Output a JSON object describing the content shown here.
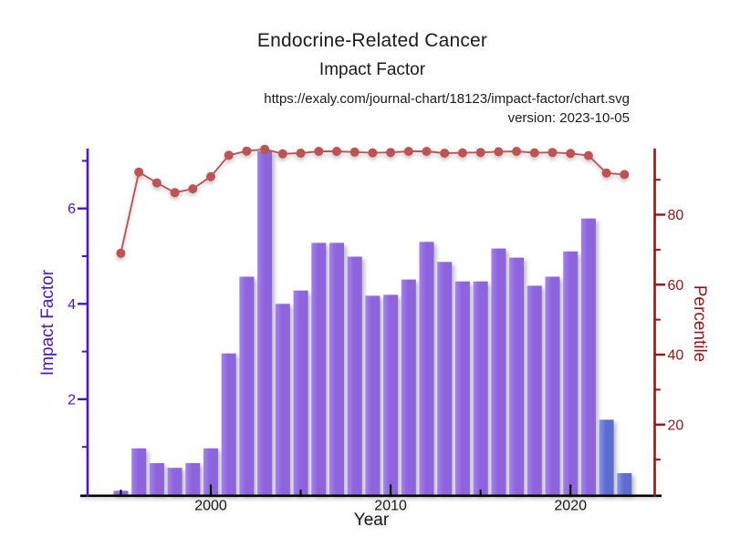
{
  "header": {
    "title": "Endocrine-Related Cancer",
    "subtitle": "Impact Factor",
    "url": "https://exaly.com/journal-chart/18123/impact-factor/chart.svg",
    "version": "version: 2023-10-05"
  },
  "chart_data": {
    "type": "bar",
    "title": "Endocrine-Related Cancer",
    "subtitle": "Impact Factor",
    "xlabel": "Year",
    "grid": false,
    "legend": "none",
    "categories": [
      1995,
      1996,
      1997,
      1998,
      1999,
      2000,
      2001,
      2002,
      2003,
      2004,
      2005,
      2006,
      2007,
      2008,
      2009,
      2010,
      2011,
      2012,
      2013,
      2014,
      2015,
      2016,
      2017,
      2018,
      2019,
      2020,
      2021,
      2022,
      2023
    ],
    "series": [
      {
        "name": "Impact Factor",
        "type": "bar",
        "axis": "left",
        "color": "#8e63de",
        "color_light": "#a284ea",
        "highlight_color": "#5d6cd3",
        "highlight_color_light": "#8a94e8",
        "highlight_categories": [
          2022,
          2023
        ],
        "values": [
          0.08,
          0.97,
          0.66,
          0.56,
          0.66,
          0.97,
          2.96,
          4.57,
          7.2,
          4.0,
          4.28,
          5.28,
          5.28,
          4.99,
          4.17,
          4.19,
          4.51,
          5.3,
          4.88,
          4.47,
          4.47,
          5.16,
          4.97,
          4.38,
          4.57,
          5.1,
          5.79,
          1.57,
          0.45
        ]
      },
      {
        "name": "Percentile",
        "type": "line",
        "axis": "right",
        "color": "#c05454",
        "marker_color": "#bf5353",
        "values": [
          69,
          92.2,
          89.1,
          86.3,
          87.4,
          90.9,
          97.0,
          98.2,
          98.7,
          97.4,
          97.6,
          98.1,
          98.1,
          97.9,
          97.7,
          97.8,
          98.1,
          98.1,
          97.6,
          97.7,
          97.8,
          98.0,
          98.1,
          97.7,
          97.8,
          97.5,
          96.9,
          91.9,
          91.5
        ]
      }
    ],
    "axes": {
      "left": {
        "label": "Impact Factor",
        "color": "#4d13cb",
        "range": [
          0,
          7.25
        ],
        "ticks_major": [
          2,
          4,
          6
        ],
        "ticks_minor": [
          1,
          3,
          5,
          7
        ]
      },
      "right": {
        "label": "Percentile",
        "color": "#9e1212",
        "range": [
          0,
          99
        ],
        "ticks_major": [
          20,
          40,
          60,
          80
        ],
        "ticks_minor": [
          10,
          30,
          50,
          70,
          90
        ]
      },
      "bottom": {
        "label": "Year",
        "color": "#1a1a1a",
        "ticks_major": [
          2000,
          2010,
          2020
        ],
        "ticks_minor": [
          1995,
          2005,
          2015
        ]
      }
    }
  }
}
